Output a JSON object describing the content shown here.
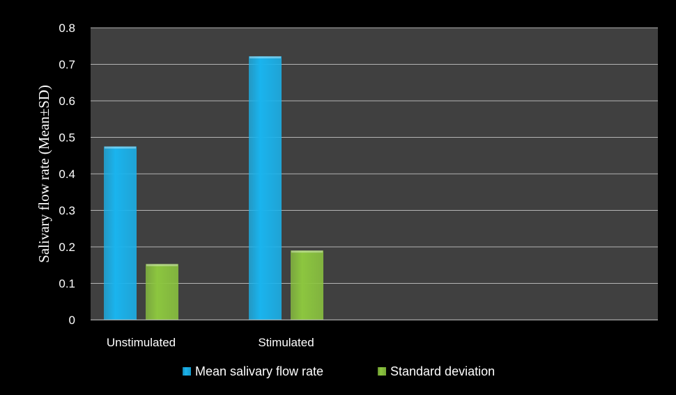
{
  "chart_data": {
    "type": "bar",
    "title": "",
    "xlabel": "",
    "ylabel": "Salivary  flow rate (Mean±SD)",
    "categories": [
      "Unstimulated",
      "Stimulated"
    ],
    "series": [
      {
        "name": "Mean salivary flow rate",
        "values": [
          0.475,
          0.722
        ],
        "color": "#1ab4ee"
      },
      {
        "name": "Standard deviation",
        "values": [
          0.153,
          0.19
        ],
        "color": "#8cc63f"
      }
    ],
    "ylim": [
      0,
      0.8
    ],
    "yticks": [
      "0",
      "0.1",
      "0.2",
      "0.3",
      "0.4",
      "0.5",
      "0.6",
      "0.7",
      "0.8"
    ],
    "grid": true,
    "legend": "bottom",
    "plot_background": "#404040"
  }
}
